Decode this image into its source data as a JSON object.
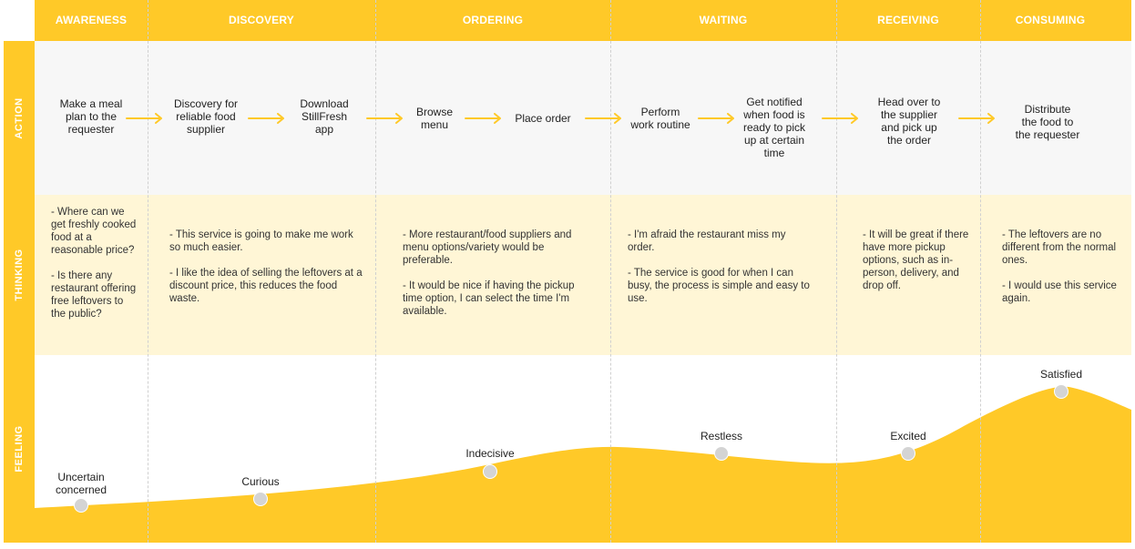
{
  "colors": {
    "accent": "#FFC928",
    "action_bg": "#F7F7F7",
    "thinking_bg": "#FFF6D6",
    "arrow": "#FFC928",
    "dot": "#D4D4D4"
  },
  "stages": [
    "AWARENESS",
    "DISCOVERY",
    "ORDERING",
    "WAITING",
    "RECEIVING",
    "CONSUMING"
  ],
  "rows": {
    "action": "ACTION",
    "thinking": "THINKING",
    "feeling": "FEELING"
  },
  "actions": [
    "Make a meal\nplan to the\nrequester",
    "Discovery for\nreliable food\nsupplier",
    "Download\nStillFresh\napp",
    "Browse\nmenu",
    "Place order",
    "Perform\nwork routine",
    "Get notified\nwhen food is\nready to pick\nup at certain\ntime",
    "Head over to\nthe supplier\nand pick up\nthe order",
    "Distribute\nthe food to\nthe requester"
  ],
  "thoughts": [
    [
      "- Where can we get freshly cooked food at a reasonable price?",
      "- Is there any restaurant offering free leftovers to the public?"
    ],
    [
      "- This service is going to make me work so much easier.",
      "- I like the idea of selling the leftovers at a discount price, this reduces the food waste."
    ],
    [
      "- More restaurant/food suppliers and menu options/variety would be preferable.",
      "- It would be nice if having the pickup time option, I can select the time I'm available."
    ],
    [
      "- I'm afraid the restaurant miss my order.",
      "- The service is good for when I can busy, the process is simple and easy to use."
    ],
    [
      "- It will be great if there have more pickup options, such as in-person, delivery, and drop off."
    ],
    [
      "- The leftovers are no different from the normal ones.",
      "- I would use this service again."
    ]
  ],
  "feelings": [
    {
      "label": "Uncertain\nconcerned",
      "level": 0.08
    },
    {
      "label": "Curious",
      "level": 0.15
    },
    {
      "label": "Indecisive",
      "level": 0.45
    },
    {
      "label": "Restless",
      "level": 0.62
    },
    {
      "label": "Excited",
      "level": 0.62
    },
    {
      "label": "Satisfied",
      "level": 1.0
    }
  ]
}
